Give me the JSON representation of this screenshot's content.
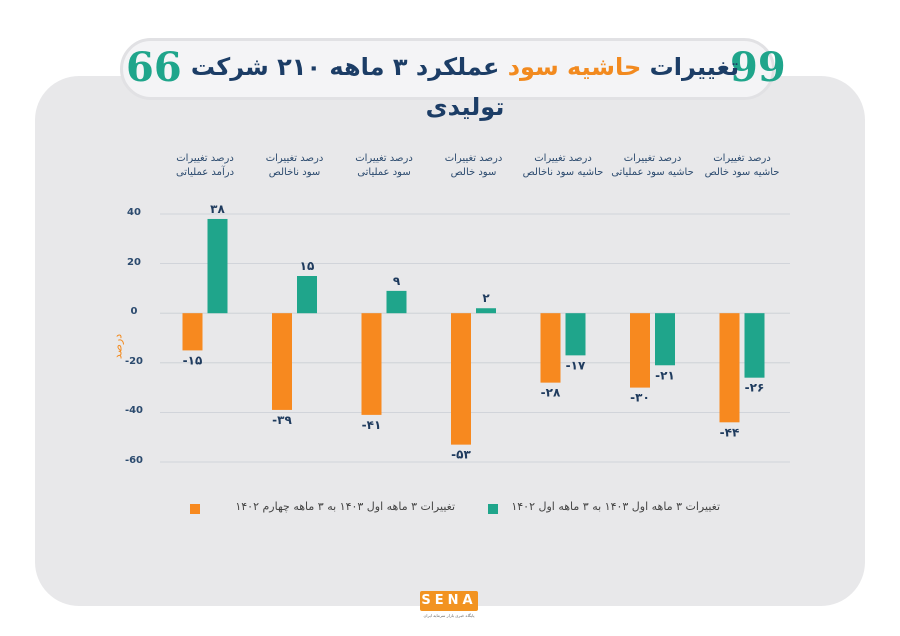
{
  "header": {
    "title_part1": "تغییرات",
    "title_highlight": "حاشیه سود",
    "title_part2": "عملکرد ۳ ماهه ۲۱۰ شرکت تولیدی",
    "quote_open": "99",
    "quote_close": "66"
  },
  "chart_data": {
    "type": "bar",
    "ylabel": "درصد",
    "ylim": [
      -60,
      40
    ],
    "yticks": [
      40,
      20,
      0,
      -20,
      -40,
      -60
    ],
    "ytick_labels": [
      "40",
      "20",
      "0",
      "-20",
      "-40",
      "-60"
    ],
    "categories": [
      "درصد تغییرات درآمد عملیاتی",
      "درصد تغییرات سود ناخالص",
      "درصد تغییرات سود عملیاتی",
      "درصد تغییرات سود خالص",
      "درصد تغییرات حاشیه سود ناخالص",
      "درصد تغییرات حاشیه سود عملیاتی",
      "درصد تغییرات حاشیه سود خالص"
    ],
    "category_lines": [
      [
        "درصد تغییرات",
        "درآمد عملیاتی"
      ],
      [
        "درصد تغییرات",
        "سود ناخالص"
      ],
      [
        "درصد تغییرات",
        "سود عملیاتی"
      ],
      [
        "درصد تغییرات",
        "سود خالص"
      ],
      [
        "درصد تغییرات",
        "حاشیه سود ناخالص"
      ],
      [
        "درصد تغییرات",
        "حاشیه سود عملیاتی"
      ],
      [
        "درصد تغییرات",
        "حاشیه سود خالص"
      ]
    ],
    "series": [
      {
        "name": "تغییرات ۳ ماهه اول ۱۴۰۳ به ۳ ماهه چهارم ۱۴۰۲",
        "color": "#f7891f",
        "values": [
          -15,
          -39,
          -41,
          -53,
          -28,
          -30,
          -44
        ],
        "labels": [
          "-۱۵",
          "-۳۹",
          "-۴۱",
          "-۵۳",
          "-۲۸",
          "-۳۰",
          "-۴۴"
        ]
      },
      {
        "name": "تغییرات ۳ ماهه اول ۱۴۰۳ به ۳ ماهه اول ۱۴۰۲",
        "color": "#1fa58b",
        "values": [
          38,
          15,
          9,
          2,
          -17,
          -21,
          -26
        ],
        "labels": [
          "۳۸",
          "۱۵",
          "۹",
          "۲",
          "-۱۷",
          "-۲۱",
          "-۲۶"
        ]
      }
    ],
    "legend_position": "bottom"
  },
  "footer": {
    "logo_text": "SENA",
    "logo_subtitle": "پایگاه خبری بازار سرمایه ایران"
  }
}
